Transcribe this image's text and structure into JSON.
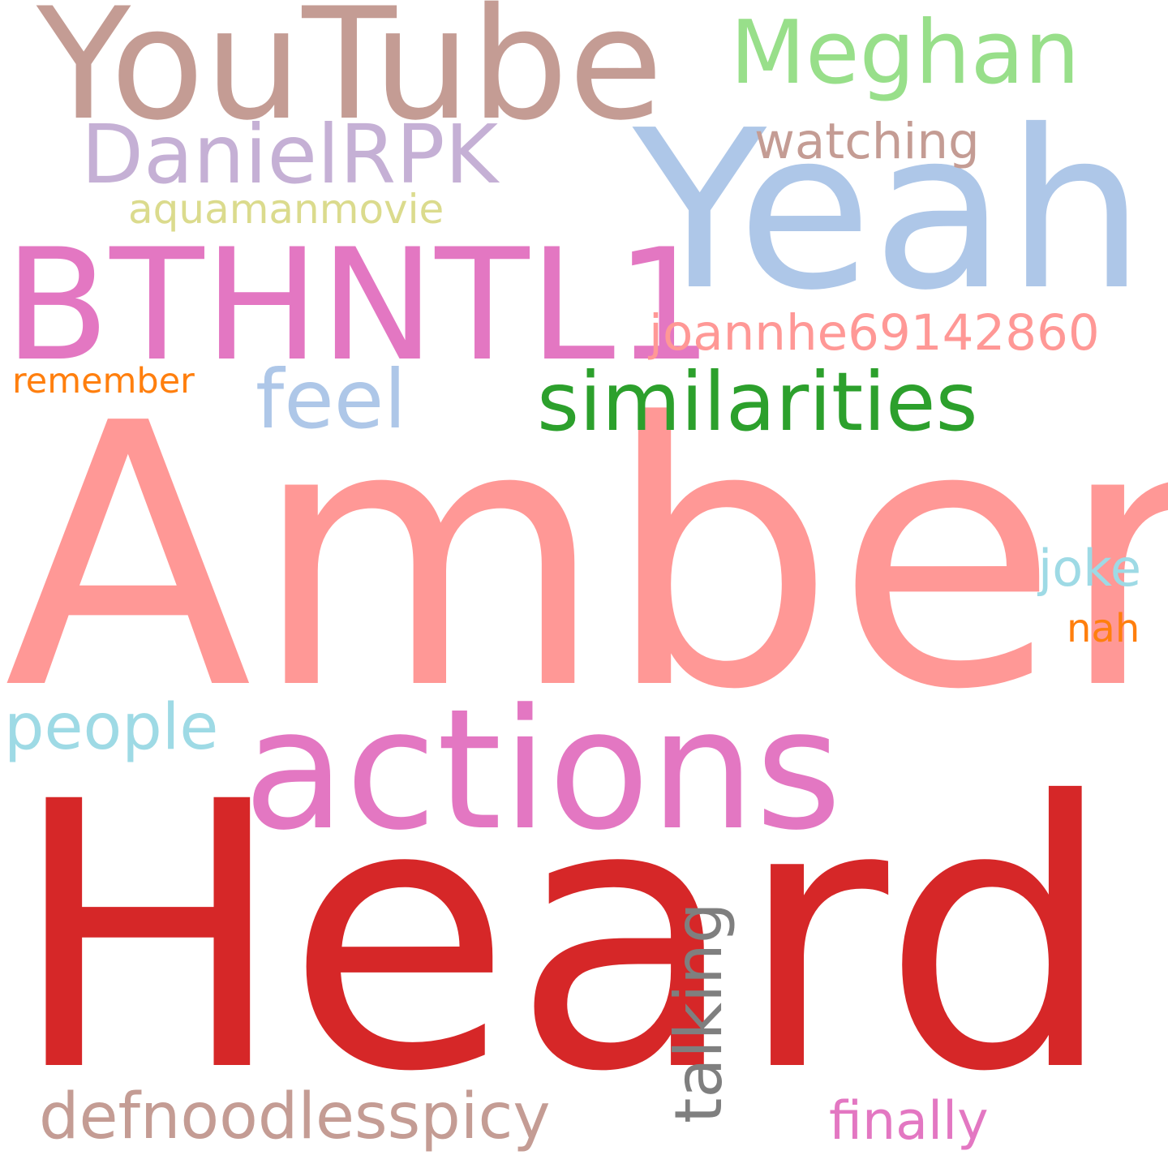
{
  "words": [
    {
      "text": "Heard",
      "color": "#d62728"
    },
    {
      "text": "Amber",
      "color": "#ff9896"
    },
    {
      "text": "actions",
      "color": "#e377c2"
    },
    {
      "text": "Yeah",
      "color": "#aec7e8"
    },
    {
      "text": "YouTube",
      "color": "#c49c94"
    },
    {
      "text": "BTHNTL1",
      "color": "#e377c2"
    },
    {
      "text": "similarities",
      "color": "#2ca02c"
    },
    {
      "text": "Meghan",
      "color": "#98df8a"
    },
    {
      "text": "DanielRPK",
      "color": "#c5b0d5"
    },
    {
      "text": "feel",
      "color": "#aec7e8"
    },
    {
      "text": "people",
      "color": "#9edae5"
    },
    {
      "text": "defnoodlesspicy",
      "color": "#c49c94"
    },
    {
      "text": "talking",
      "color": "#7f7f7f"
    },
    {
      "text": "joannhe69142860",
      "color": "#ff9896"
    },
    {
      "text": "watching",
      "color": "#c49c94"
    },
    {
      "text": "aquamanmovie",
      "color": "#dbdb8d"
    },
    {
      "text": "remember",
      "color": "#ff7f0e"
    },
    {
      "text": "joke",
      "color": "#9edae5"
    },
    {
      "text": "nah",
      "color": "#ff7f0e"
    },
    {
      "text": "finally",
      "color": "#e377c2"
    }
  ]
}
